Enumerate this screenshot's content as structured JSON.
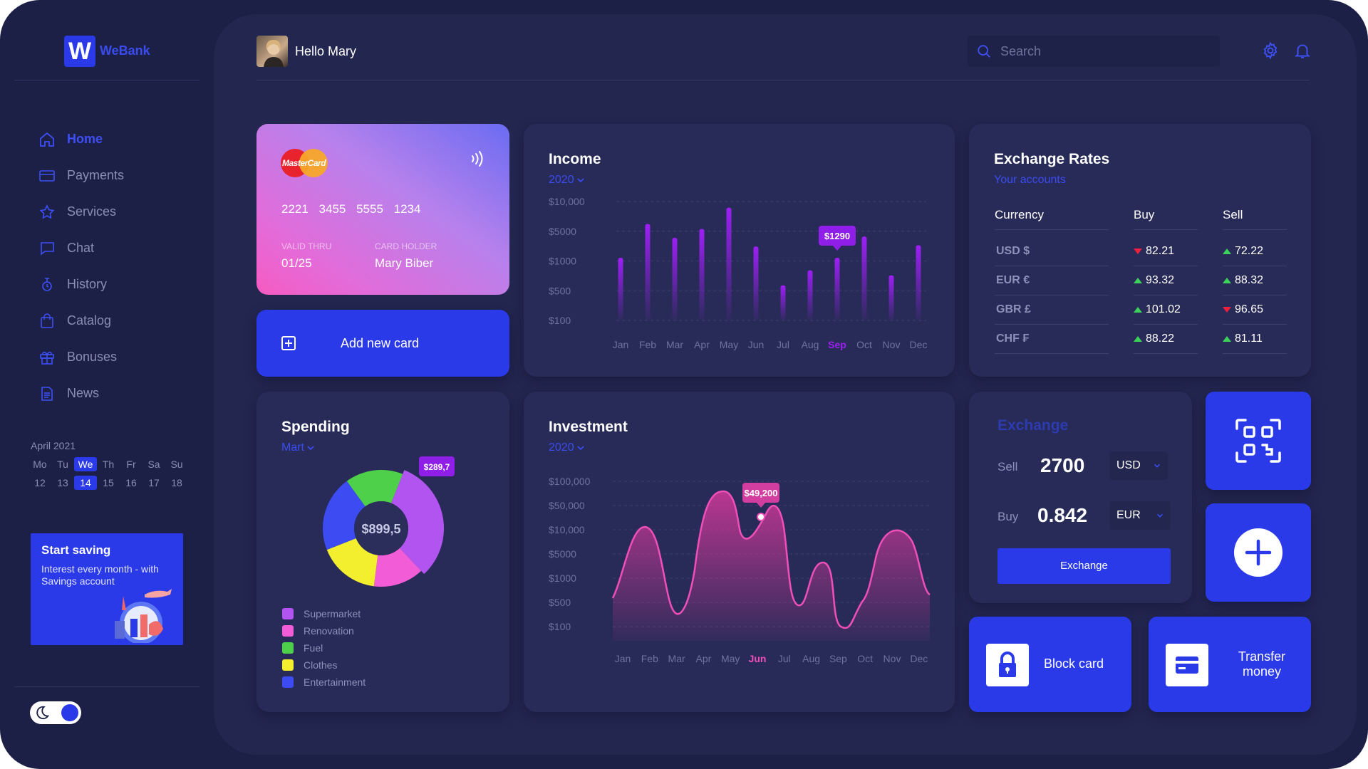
{
  "app": {
    "logo_letter": "W",
    "name": "WeBank"
  },
  "sidebar": {
    "items": [
      {
        "label": "Home",
        "icon": "home-icon",
        "active": true
      },
      {
        "label": "Payments",
        "icon": "credit-card-icon"
      },
      {
        "label": "Services",
        "icon": "star-icon"
      },
      {
        "label": "Chat",
        "icon": "chat-icon"
      },
      {
        "label": "History",
        "icon": "history-icon"
      },
      {
        "label": "Catalog",
        "icon": "bag-icon"
      },
      {
        "label": "Bonuses",
        "icon": "gift-icon"
      },
      {
        "label": "News",
        "icon": "document-icon"
      }
    ],
    "calendar": {
      "month": "April 2021",
      "days": [
        "Mo",
        "Tu",
        "We",
        "Th",
        "Fr",
        "Sa",
        "Su"
      ],
      "dates": [
        "12",
        "13",
        "14",
        "15",
        "16",
        "17",
        "18"
      ],
      "selected_index": 2
    },
    "promo": {
      "title": "Start saving",
      "subtitle": "Interest every month - with Savings account"
    },
    "theme_toggle": {
      "mode": "dark"
    }
  },
  "header": {
    "greeting": "Hello Mary",
    "search_placeholder": "Search"
  },
  "bank_card": {
    "brand": "MasterCard",
    "number": "2221 3455 5555 1234",
    "valid_label": "VALID THRU",
    "valid": "01/25",
    "holder_label": "CARD HOLDER",
    "holder": "Mary Biber"
  },
  "add_card": {
    "label": "Add new card"
  },
  "income": {
    "title": "Income",
    "year": "2020",
    "chart_data": {
      "type": "bar",
      "categories": [
        "Jan",
        "Feb",
        "Mar",
        "Apr",
        "May",
        "Jun",
        "Jul",
        "Aug",
        "Sep",
        "Oct",
        "Nov",
        "Dec"
      ],
      "y_ticks": [
        "$10,000",
        "$5000",
        "$1000",
        "$500",
        "$100"
      ],
      "values": [
        0.5,
        0.77,
        0.66,
        0.73,
        0.9,
        0.59,
        0.28,
        0.4,
        0.5,
        0.67,
        0.36,
        0.6
      ],
      "highlight_index": 8,
      "highlight_label": "$1290"
    }
  },
  "exchange_rates": {
    "title": "Exchange Rates",
    "subtitle": "Your accounts",
    "columns": [
      "Currency",
      "Buy",
      "Sell"
    ],
    "rows": [
      {
        "currency": "USD $",
        "buy": "82.21",
        "buy_trend": "down",
        "sell": "72.22",
        "sell_trend": "up"
      },
      {
        "currency": "EUR €",
        "buy": "93.32",
        "buy_trend": "up",
        "sell": "88.32",
        "sell_trend": "up"
      },
      {
        "currency": "GBR £",
        "buy": "101.02",
        "buy_trend": "up",
        "sell": "96.65",
        "sell_trend": "down"
      },
      {
        "currency": "CHF ₣",
        "buy": "88.22",
        "buy_trend": "up",
        "sell": "81.11",
        "sell_trend": "up"
      }
    ]
  },
  "spending": {
    "title": "Spending",
    "period": "Mart",
    "total": "$899,5",
    "badge": "$289,7",
    "chart_data": {
      "type": "pie",
      "categories": [
        "Supermarket",
        "Renovation",
        "Fuel",
        "Clothes",
        "Entertainment"
      ],
      "values": [
        32,
        14,
        16,
        17,
        21
      ],
      "colors": [
        "#b254f0",
        "#f25cd6",
        "#4fd04a",
        "#f4ef2e",
        "#3c4cf2"
      ]
    }
  },
  "investment": {
    "title": "Investment",
    "year": "2020",
    "chart_data": {
      "type": "area",
      "categories": [
        "Jan",
        "Feb",
        "Mar",
        "Apr",
        "May",
        "Jun",
        "Jul",
        "Aug",
        "Sep",
        "Oct",
        "Nov",
        "Dec"
      ],
      "y_ticks": [
        "$100,000",
        "$50,000",
        "$10,000",
        "$5000",
        "$1000",
        "$500",
        "$100"
      ],
      "highlight_index": 5,
      "highlight_label": "$49,200"
    }
  },
  "exchange": {
    "title": "Exchange",
    "sell_label": "Sell",
    "sell_value": "2700",
    "sell_currency": "USD",
    "buy_label": "Buy",
    "buy_value": "0.842",
    "buy_currency": "EUR",
    "button": "Exchange"
  },
  "tiles": {
    "qr": {
      "icon": "qr-scan-icon"
    },
    "add": {
      "icon": "plus-icon"
    },
    "block": {
      "label": "Block card",
      "icon": "lock-icon"
    },
    "transfer": {
      "label": "Transfer money",
      "icon": "card-icon"
    }
  }
}
